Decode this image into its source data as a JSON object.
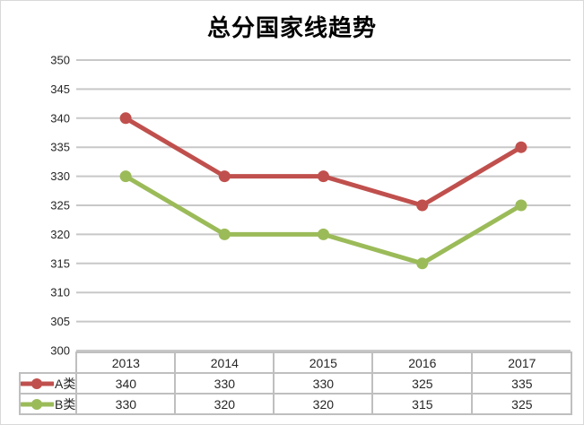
{
  "chart_data": {
    "type": "line",
    "title": "总分国家线趋势",
    "categories": [
      "2013",
      "2014",
      "2015",
      "2016",
      "2017"
    ],
    "series": [
      {
        "name": "A类",
        "color": "#C0504D",
        "values": [
          340,
          330,
          330,
          325,
          335
        ]
      },
      {
        "name": "B类",
        "color": "#9BBB59",
        "values": [
          330,
          320,
          320,
          315,
          325
        ]
      }
    ],
    "xlabel": "",
    "ylabel": "",
    "ylim": [
      300,
      350
    ],
    "yticks": [
      350,
      345,
      340,
      335,
      330,
      325,
      320,
      315,
      310,
      305,
      300
    ],
    "grid": "horizontal-only",
    "legend_position": "data-table-left",
    "data_table_shown": true,
    "marker": "circle"
  },
  "styles": {
    "background": "#FFFFFF",
    "chart_border_color": "#D9D9D9",
    "gridline_color": "#C8C8C8",
    "table_border_color": "#BFBFBF",
    "text_color": "#262626",
    "title_color": "#000000"
  }
}
